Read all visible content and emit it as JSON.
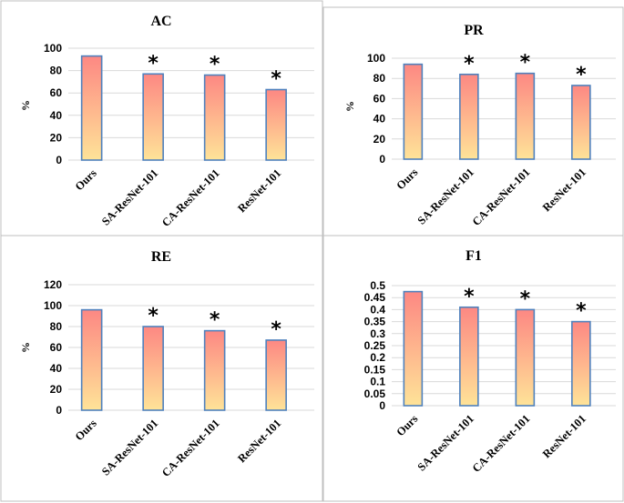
{
  "colors": {
    "bar_top": "#fd8883",
    "bar_bottom": "#fee398",
    "bar_border": "#4f81bd",
    "gridline": "#d9d9d9",
    "frame": "#bfbfbf"
  },
  "chart_data": [
    {
      "type": "bar",
      "title": "AC",
      "ylabel": "%",
      "xlabel": "",
      "categories": [
        "Ours",
        "SA-ResNet-101",
        "CA-ResNet-101",
        "ResNet-101"
      ],
      "values": [
        93,
        77,
        76,
        63
      ],
      "significant": [
        "",
        "*",
        "*",
        "*"
      ],
      "ylim": [
        0,
        100
      ],
      "yticks": [
        "0",
        "20",
        "40",
        "60",
        "80",
        "100"
      ],
      "grid": true
    },
    {
      "type": "bar",
      "title": "PR",
      "ylabel": "%",
      "xlabel": "",
      "categories": [
        "Ours",
        "SA-ResNet-101",
        "CA-ResNet-101",
        "ResNet-101"
      ],
      "values": [
        94,
        84,
        85,
        73
      ],
      "significant": [
        "",
        "*",
        "*",
        "*"
      ],
      "ylim": [
        0,
        100
      ],
      "yticks": [
        "0",
        "20",
        "40",
        "60",
        "80",
        "100"
      ],
      "grid": true
    },
    {
      "type": "bar",
      "title": "RE",
      "ylabel": "%",
      "xlabel": "",
      "categories": [
        "Ours",
        "SA-ResNet-101",
        "CA-ResNet-101",
        "ResNet-101"
      ],
      "values": [
        96,
        80,
        76,
        67
      ],
      "significant": [
        "",
        "*",
        "*",
        "*"
      ],
      "ylim": [
        0,
        120
      ],
      "yticks": [
        "0",
        "20",
        "40",
        "60",
        "80",
        "100",
        "120"
      ],
      "grid": true
    },
    {
      "type": "bar",
      "title": "F1",
      "ylabel": "",
      "xlabel": "",
      "categories": [
        "Ours",
        "SA-ResNet-101",
        "CA-ResNet-101",
        "ResNet-101"
      ],
      "values": [
        0.475,
        0.41,
        0.4,
        0.35
      ],
      "significant": [
        "",
        "*",
        "*",
        "*"
      ],
      "ylim": [
        0,
        0.5
      ],
      "yticks": [
        "0",
        "0.05",
        "0.1",
        "0.15",
        "0.2",
        "0.25",
        "0.3",
        "0.35",
        "0.4",
        "0.45",
        "0.5"
      ],
      "grid": true
    }
  ]
}
